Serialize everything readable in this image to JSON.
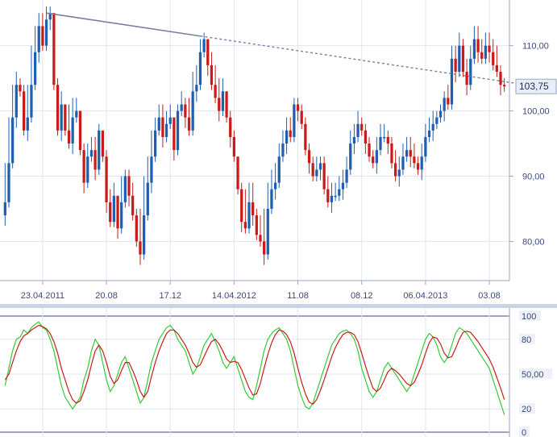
{
  "colors": {
    "up_candle": "#1f5fb0",
    "down_candle": "#cc1a1a",
    "grid": "#dfe6f0",
    "axis_text": "#3b4a78",
    "trendline": "#7a7f9a",
    "separator": "#c9d4e4",
    "stoch_k": "#33cc33",
    "stoch_d": "#cc1a1a",
    "price_label_bg": "#e8eef7",
    "price_label_border": "#9aa7c0"
  },
  "chart_data": [
    {
      "type": "candlestick",
      "name": "price-panel",
      "ylim": [
        74,
        117
      ],
      "y_ticks": [
        80,
        90,
        100,
        110
      ],
      "y_tick_labels": [
        "80,00",
        "90,00",
        "100,00",
        "110,00"
      ],
      "last_price_label": "103,75",
      "last_price": 103.75,
      "x_tick_labels": [
        "23.04.2011",
        "20.08",
        "17.12",
        "14.04.2012",
        "11.08",
        "08.12",
        "06.04.2013",
        "03.08"
      ],
      "x_tick_index": [
        10,
        27,
        44,
        61,
        78,
        95,
        112,
        129
      ],
      "grid": true,
      "trendline": {
        "from_index": 11,
        "to_index": 162,
        "from_value": 115,
        "to_value": 102
      },
      "trendline_solid_until_index": 52,
      "closes": [
        86,
        92,
        99,
        104,
        103,
        97,
        99,
        104,
        109,
        113,
        110,
        114,
        115,
        104,
        97,
        101,
        97,
        95,
        99,
        100,
        94,
        89,
        93,
        94,
        91,
        97,
        93,
        86,
        83,
        87,
        82,
        86,
        90,
        87,
        84,
        80,
        78,
        84,
        89,
        93,
        97,
        99,
        96,
        98,
        99,
        94,
        100,
        101,
        99,
        97,
        103,
        104,
        109,
        111,
        107,
        104,
        102,
        100,
        103,
        99,
        96,
        93,
        88,
        83,
        82,
        86,
        84,
        81,
        80,
        78,
        85,
        88,
        89,
        93,
        95,
        97,
        96,
        101,
        100,
        98,
        94,
        92,
        90,
        91,
        92,
        88,
        86,
        87,
        87,
        88,
        89,
        91,
        95,
        96,
        98,
        97,
        95,
        93,
        92,
        94,
        96,
        96,
        95,
        92,
        90,
        91,
        93,
        94,
        93,
        92,
        91,
        93,
        96,
        97,
        98,
        99,
        100,
        102,
        101,
        108,
        106,
        110,
        106,
        104,
        108,
        111,
        109,
        108,
        110,
        109,
        107,
        106,
        104,
        103.75
      ],
      "highs": [
        92,
        99,
        104,
        106,
        105,
        104,
        104,
        110,
        113,
        115,
        115,
        116,
        116,
        115,
        105,
        103,
        101,
        101,
        102,
        102,
        100,
        95,
        95,
        96,
        96,
        98,
        97,
        94,
        88,
        89,
        87,
        90,
        91,
        91,
        89,
        85,
        85,
        90,
        93,
        97,
        99,
        101,
        101,
        100,
        101,
        99,
        101,
        103,
        102,
        102,
        106,
        107,
        111,
        112,
        111,
        109,
        107,
        105,
        105,
        103,
        100,
        97,
        93,
        89,
        88,
        89,
        89,
        85,
        84,
        85,
        89,
        91,
        92,
        95,
        97,
        99,
        99,
        102,
        102,
        101,
        99,
        95,
        93,
        93,
        93,
        93,
        90,
        89,
        89,
        90,
        91,
        93,
        97,
        98,
        100,
        99,
        98,
        96,
        94,
        96,
        98,
        98,
        97,
        96,
        94,
        93,
        95,
        96,
        96,
        95,
        93,
        95,
        98,
        99,
        100,
        100,
        101,
        103,
        104,
        110,
        110,
        112,
        111,
        108,
        110,
        113,
        113,
        111,
        112,
        112,
        111,
        110,
        107,
        105
      ]
    },
    {
      "type": "line",
      "name": "stochastic-panel",
      "ylim": [
        0,
        100
      ],
      "y_ticks": [
        0,
        20,
        50,
        80,
        100
      ],
      "y_tick_labels": [
        "0",
        "20",
        "50,00",
        "80",
        "100"
      ],
      "series": [
        {
          "key": "k",
          "values": [
            40,
            55,
            70,
            80,
            82,
            88,
            85,
            90,
            93,
            95,
            90,
            88,
            80,
            70,
            55,
            40,
            30,
            25,
            20,
            25,
            30,
            45,
            55,
            70,
            80,
            75,
            60,
            45,
            35,
            40,
            50,
            60,
            65,
            55,
            45,
            35,
            25,
            30,
            45,
            60,
            70,
            80,
            85,
            90,
            92,
            88,
            80,
            75,
            70,
            60,
            50,
            55,
            65,
            75,
            80,
            85,
            78,
            70,
            60,
            55,
            60,
            65,
            55,
            45,
            35,
            30,
            28,
            40,
            55,
            70,
            80,
            85,
            88,
            90,
            85,
            80,
            70,
            55,
            40,
            30,
            22,
            20,
            25,
            35,
            45,
            55,
            65,
            75,
            80,
            85,
            87,
            88,
            85,
            80,
            70,
            55,
            45,
            35,
            30,
            35,
            45,
            55,
            60,
            55,
            50,
            45,
            40,
            35,
            40,
            50,
            60,
            70,
            80,
            85,
            82,
            75,
            65,
            60,
            65,
            75,
            85,
            90,
            88,
            85,
            80,
            75,
            70,
            65,
            60,
            55,
            45,
            35,
            25,
            15
          ]
        },
        {
          "key": "d",
          "values": [
            45,
            50,
            60,
            70,
            78,
            83,
            85,
            88,
            90,
            92,
            91,
            89,
            85,
            78,
            68,
            55,
            45,
            35,
            28,
            25,
            27,
            35,
            45,
            58,
            70,
            75,
            70,
            60,
            48,
            42,
            45,
            53,
            60,
            60,
            53,
            45,
            35,
            30,
            35,
            48,
            60,
            70,
            78,
            85,
            88,
            88,
            85,
            80,
            75,
            68,
            60,
            56,
            58,
            65,
            72,
            78,
            80,
            76,
            70,
            63,
            60,
            61,
            60,
            54,
            46,
            38,
            32,
            33,
            42,
            55,
            67,
            77,
            84,
            88,
            87,
            84,
            78,
            68,
            55,
            43,
            33,
            26,
            24,
            28,
            36,
            45,
            55,
            65,
            73,
            79,
            84,
            86,
            86,
            84,
            78,
            68,
            57,
            47,
            38,
            35,
            38,
            45,
            52,
            55,
            53,
            50,
            46,
            42,
            40,
            43,
            50,
            58,
            68,
            77,
            82,
            81,
            76,
            68,
            64,
            65,
            72,
            80,
            86,
            87,
            86,
            82,
            78,
            73,
            68,
            63,
            56,
            47,
            38,
            28
          ]
        }
      ]
    }
  ]
}
